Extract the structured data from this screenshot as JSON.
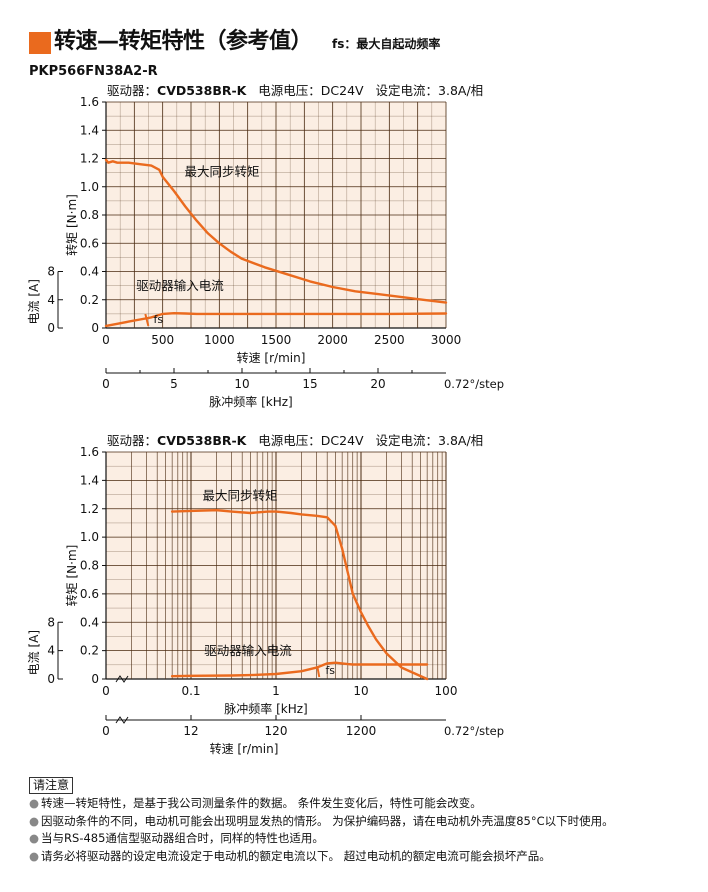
{
  "header": {
    "title": "转速—转矩特性（参考值）",
    "fs_note": "fs：最大自起动频率",
    "model": "PKP566FN38A2-R"
  },
  "notice": {
    "title": "请注意",
    "items": [
      "转速—转矩特性，是基于我公司测量条件的数据。 条件发生变化后，特性可能会改变。",
      "因驱动条件的不同，电动机可能会出现明显发热的情形。 为保护编码器，请在电动机外壳温度85°C以下时使用。",
      "当与RS-485通信型驱动器组合时，同样的特性也适用。",
      "请务必将驱动器的设定电流设定于电动机的额定电流以下。 超过电动机的额定电流可能会损坏产品。"
    ]
  },
  "colors": {
    "accent": "#ea6a1e",
    "plot_bg": "#fbeee3",
    "grid": "#4a2a10",
    "curve": "#ea6a1e"
  },
  "chart_data": [
    {
      "type": "line",
      "info": {
        "driver_label": "驱动器：",
        "driver_model": "CVD538BR-K",
        "voltage": "电源电压：DC24V",
        "current": "设定电流：3.8A/相"
      },
      "x_scale": "linear",
      "xlabel": "转速 [r/min]",
      "xlim": [
        0,
        3000
      ],
      "x_ticks": [
        "0",
        "500",
        "1000",
        "1500",
        "2000",
        "2500",
        "3000"
      ],
      "x_tick_values": [
        0,
        500,
        1000,
        1500,
        2000,
        2500,
        3000
      ],
      "ylabel": "转矩 [N·m]",
      "ylim": [
        0,
        1.6
      ],
      "y_ticks": [
        "0",
        "0.2",
        "0.4",
        "0.6",
        "0.8",
        "1.0",
        "1.2",
        "1.4",
        "1.6"
      ],
      "y_tick_values": [
        0,
        0.2,
        0.4,
        0.6,
        0.8,
        1.0,
        1.2,
        1.4,
        1.6
      ],
      "y2label": "电流 [A]",
      "y2lim": [
        0,
        8
      ],
      "y2_ticks": [
        "0",
        "4",
        "8"
      ],
      "secondary_xlabel": "脉冲频率 [kHz]",
      "secondary_x_ticks": [
        "0",
        "5",
        "10",
        "15",
        "20"
      ],
      "secondary_x_tick_values": [
        0,
        5,
        10,
        15,
        20
      ],
      "secondary_xlim": [
        0,
        25
      ],
      "secondary_x_end_label": "0.72°/step",
      "series": [
        {
          "name": "最大同步转矩",
          "x": [
            0,
            20,
            60,
            100,
            200,
            300,
            400,
            470,
            500,
            600,
            700,
            800,
            900,
            1000,
            1100,
            1200,
            1400,
            1600,
            1800,
            2000,
            2200,
            2400,
            2600,
            2800,
            3000
          ],
          "y": [
            1.19,
            1.17,
            1.18,
            1.17,
            1.17,
            1.16,
            1.15,
            1.12,
            1.07,
            0.97,
            0.86,
            0.76,
            0.67,
            0.6,
            0.54,
            0.49,
            0.43,
            0.38,
            0.33,
            0.29,
            0.26,
            0.24,
            0.22,
            0.2,
            0.18
          ]
        },
        {
          "name": "驱动器输入电流",
          "x": [
            0,
            100,
            200,
            300,
            400,
            500,
            600,
            700,
            800,
            1000,
            1500,
            2000,
            2500,
            3000
          ],
          "y_current_A": [
            0.3,
            0.6,
            0.9,
            1.2,
            1.5,
            2.0,
            2.1,
            2.05,
            2.0,
            2.0,
            2.0,
            2.0,
            2.0,
            2.05
          ]
        }
      ],
      "fs_label": "fs",
      "fs_x": 400
    },
    {
      "type": "line",
      "info": {
        "driver_label": "驱动器：",
        "driver_model": "CVD538BR-K",
        "voltage": "电源电压：DC24V",
        "current": "设定电流：3.8A/相"
      },
      "x_scale": "log",
      "xlabel": "脉冲频率 [kHz]",
      "xlim": [
        0.01,
        100
      ],
      "x_ticks": [
        "0.1",
        "1",
        "10",
        "100"
      ],
      "x_tick_values": [
        0.1,
        1,
        10,
        100
      ],
      "ylabel": "转矩 [N·m]",
      "ylim": [
        0,
        1.6
      ],
      "y_ticks": [
        "0",
        "0.2",
        "0.4",
        "0.6",
        "0.8",
        "1.0",
        "1.2",
        "1.4",
        "1.6"
      ],
      "y_tick_values": [
        0,
        0.2,
        0.4,
        0.6,
        0.8,
        1.0,
        1.2,
        1.4,
        1.6
      ],
      "y2label": "电流 [A]",
      "y2lim": [
        0,
        8
      ],
      "y2_ticks": [
        "0",
        "4",
        "8"
      ],
      "origin_label": "0",
      "secondary_xlabel": "转速 [r/min]",
      "secondary_x_ticks": [
        "0",
        "12",
        "120",
        "1200"
      ],
      "secondary_x_tick_values": [
        0.01,
        0.1,
        1,
        10
      ],
      "secondary_x_end_label": "0.72°/step",
      "series": [
        {
          "name": "最大同步转矩",
          "x": [
            0.06,
            0.1,
            0.2,
            0.3,
            0.5,
            0.8,
            1.0,
            1.5,
            2.0,
            3.0,
            4.0,
            5.0,
            6.0,
            7.0,
            8.0,
            10,
            12,
            15,
            20,
            30,
            60
          ],
          "y": [
            1.18,
            1.185,
            1.19,
            1.18,
            1.17,
            1.18,
            1.18,
            1.17,
            1.16,
            1.15,
            1.14,
            1.08,
            0.92,
            0.75,
            0.6,
            0.47,
            0.38,
            0.28,
            0.18,
            0.08,
            0.0
          ]
        },
        {
          "name": "驱动器输入电流",
          "x": [
            0.06,
            0.1,
            0.3,
            0.5,
            1.0,
            2.0,
            3.0,
            4.0,
            5.0,
            6.0,
            7.0,
            8.0,
            10,
            15,
            20,
            30,
            60
          ],
          "y_current_A": [
            0.4,
            0.45,
            0.5,
            0.55,
            0.7,
            1.1,
            1.6,
            2.2,
            2.3,
            2.2,
            2.1,
            2.05,
            2.05,
            2.05,
            2.05,
            2.05,
            2.05
          ]
        }
      ],
      "fs_label": "fs",
      "fs_x": 3.5
    }
  ]
}
